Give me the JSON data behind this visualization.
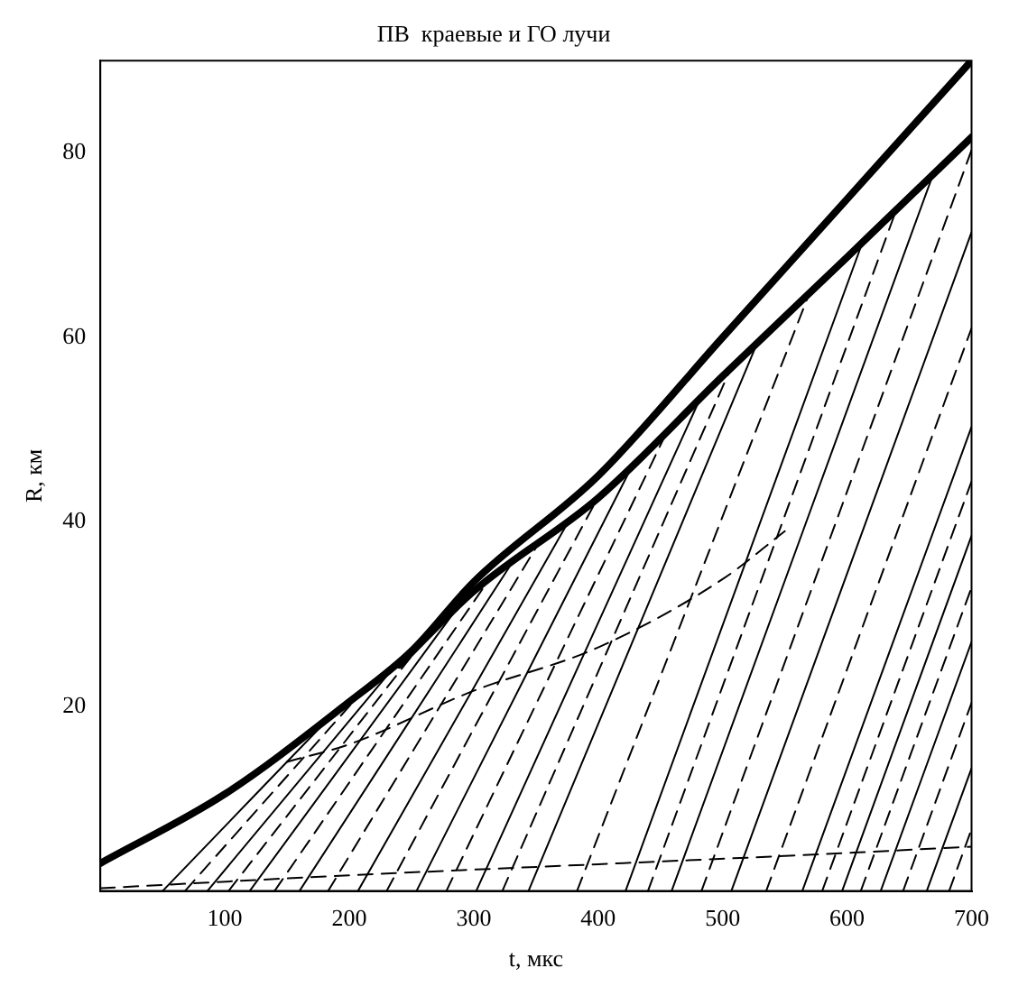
{
  "chart_data": {
    "type": "line",
    "title": "ПВ  краевые и ГО лучи",
    "xlabel": "t, мкс",
    "ylabel": "R, км",
    "xlim": [
      0,
      700
    ],
    "ylim": [
      0,
      90
    ],
    "xticks": [
      100,
      200,
      300,
      400,
      500,
      600,
      700
    ],
    "yticks": [
      20,
      40,
      60,
      80
    ],
    "grid": false,
    "legend": false,
    "marker": "none",
    "series": [
      {
        "color": "#000000",
        "line_style": "solid",
        "x": [
          0,
          100,
          200,
          250,
          300,
          400,
          500,
          600,
          700
        ],
        "values": [
          3,
          10.5,
          20.5,
          26,
          33.5,
          45,
          60,
          75,
          90
        ]
      },
      {
        "color": "#000000",
        "line_style": "solid",
        "x": [
          240,
          300,
          400,
          500,
          600,
          700
        ],
        "values": [
          24.5,
          32.5,
          42.6,
          55.8,
          68.7,
          81.7
        ]
      },
      {
        "color": "#000000",
        "line_style": "solid",
        "x": [
          50,
          195
        ],
        "values": [
          0,
          20.3
        ]
      },
      {
        "color": "#000000",
        "line_style": "solid",
        "x": [
          86,
          243
        ],
        "values": [
          0,
          25.4
        ]
      },
      {
        "color": "#000000",
        "line_style": "solid",
        "x": [
          120,
          295
        ],
        "values": [
          0,
          32.2
        ]
      },
      {
        "color": "#000000",
        "line_style": "solid",
        "x": [
          160,
          330
        ],
        "values": [
          0,
          35.4
        ]
      },
      {
        "color": "#000000",
        "line_style": "solid",
        "x": [
          207,
          378
        ],
        "values": [
          0,
          40.5
        ]
      },
      {
        "color": "#000000",
        "line_style": "solid",
        "x": [
          254,
          427
        ],
        "values": [
          0,
          46
        ]
      },
      {
        "color": "#000000",
        "line_style": "solid",
        "x": [
          302,
          482
        ],
        "values": [
          0,
          53.4
        ]
      },
      {
        "color": "#000000",
        "line_style": "solid",
        "x": [
          344,
          529
        ],
        "values": [
          0,
          59.8
        ]
      },
      {
        "color": "#000000",
        "line_style": "solid",
        "x": [
          422,
          614
        ],
        "values": [
          0,
          70.9
        ]
      },
      {
        "color": "#000000",
        "line_style": "solid",
        "x": [
          459,
          670
        ],
        "values": [
          0,
          78
        ]
      },
      {
        "color": "#000000",
        "line_style": "solid",
        "x": [
          507,
          700
        ],
        "values": [
          0,
          71.4
        ]
      },
      {
        "color": "#000000",
        "line_style": "solid",
        "x": [
          564,
          700
        ],
        "values": [
          0,
          50.3
        ]
      },
      {
        "color": "#000000",
        "line_style": "solid",
        "x": [
          596,
          700
        ],
        "values": [
          0,
          38.5
        ]
      },
      {
        "color": "#000000",
        "line_style": "solid",
        "x": [
          627,
          700
        ],
        "values": [
          0,
          27
        ]
      },
      {
        "color": "#000000",
        "line_style": "solid",
        "x": [
          664,
          700
        ],
        "values": [
          0,
          13.3
        ]
      },
      {
        "color": "#000000",
        "line_style": "dashed",
        "x": [
          68,
          209
        ],
        "values": [
          0,
          21.4
        ]
      },
      {
        "color": "#000000",
        "line_style": "dashed",
        "x": [
          103,
          252
        ],
        "values": [
          0,
          25.8
        ]
      },
      {
        "color": "#000000",
        "line_style": "dashed",
        "x": [
          140,
          312
        ],
        "values": [
          0,
          33.7
        ]
      },
      {
        "color": "#000000",
        "line_style": "dashed",
        "x": [
          183,
          354
        ],
        "values": [
          0,
          38.1
        ]
      },
      {
        "color": "#000000",
        "line_style": "dashed",
        "x": [
          230,
          400
        ],
        "values": [
          0,
          42.7
        ]
      },
      {
        "color": "#000000",
        "line_style": "dashed",
        "x": [
          278,
          456
        ],
        "values": [
          0,
          50
        ]
      },
      {
        "color": "#000000",
        "line_style": "dashed",
        "x": [
          323,
          506
        ],
        "values": [
          0,
          56.5
        ]
      },
      {
        "color": "#000000",
        "line_style": "dashed",
        "x": [
          383,
          570
        ],
        "values": [
          0,
          64.9
        ]
      },
      {
        "color": "#000000",
        "line_style": "dashed",
        "x": [
          440,
          640
        ],
        "values": [
          0,
          74
        ]
      },
      {
        "color": "#000000",
        "line_style": "dashed",
        "x": [
          483,
          700
        ],
        "values": [
          0,
          80.3
        ]
      },
      {
        "color": "#000000",
        "line_style": "dashed",
        "x": [
          535,
          700
        ],
        "values": [
          0,
          61
        ]
      },
      {
        "color": "#000000",
        "line_style": "dashed",
        "x": [
          580,
          700
        ],
        "values": [
          0,
          44.4
        ]
      },
      {
        "color": "#000000",
        "line_style": "dashed",
        "x": [
          611,
          700
        ],
        "values": [
          0,
          32.9
        ]
      },
      {
        "color": "#000000",
        "line_style": "dashed",
        "x": [
          645,
          700
        ],
        "values": [
          0,
          20.4
        ]
      },
      {
        "color": "#000000",
        "line_style": "dashed",
        "x": [
          682,
          700
        ],
        "values": [
          0,
          6.7
        ]
      },
      {
        "color": "#000000",
        "line_style": "dashed",
        "x": [
          0,
          200,
          400,
          550,
          700
        ],
        "values": [
          0.3,
          1.7,
          2.9,
          3.8,
          4.8
        ]
      },
      {
        "color": "#000000",
        "line_style": "dashed",
        "x": [
          150,
          200,
          300,
          400,
          500,
          550
        ],
        "values": [
          14,
          15.9,
          21.7,
          26.4,
          33.8,
          39
        ]
      }
    ]
  }
}
